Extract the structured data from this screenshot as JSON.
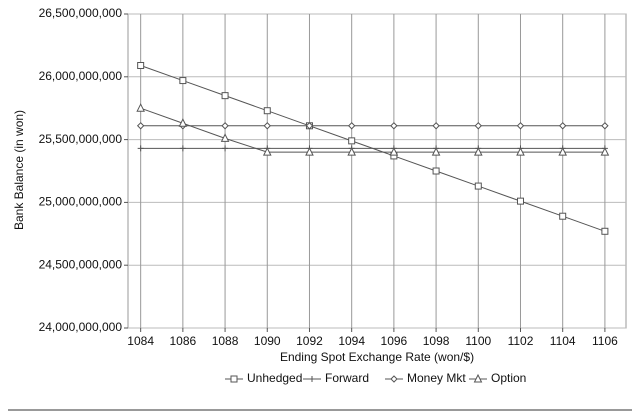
{
  "chart_data": {
    "type": "line",
    "x_label": "Ending Spot Exchange Rate (won/$)",
    "y_label": "Bank Balance (in won)",
    "x": [
      1084,
      1086,
      1088,
      1090,
      1092,
      1094,
      1096,
      1098,
      1100,
      1102,
      1104,
      1106
    ],
    "series": [
      {
        "name": "Unhedged",
        "color": "#555555",
        "marker": "square",
        "values": [
          26090000000,
          25970000000,
          25850000000,
          25730000000,
          25610000000,
          25490000000,
          25370000000,
          25250000000,
          25130000000,
          25010000000,
          24890000000,
          24770000000
        ]
      },
      {
        "name": "Forward",
        "color": "#555555",
        "marker": "plus",
        "values": [
          25430000000,
          25430000000,
          25430000000,
          25430000000,
          25430000000,
          25430000000,
          25430000000,
          25430000000,
          25430000000,
          25430000000,
          25430000000,
          25430000000
        ]
      },
      {
        "name": "Money Mkt",
        "color": "#555555",
        "marker": "diamond",
        "values": [
          25610000000,
          25610000000,
          25610000000,
          25610000000,
          25610000000,
          25610000000,
          25610000000,
          25610000000,
          25610000000,
          25610000000,
          25610000000,
          25610000000
        ]
      },
      {
        "name": "Option",
        "color": "#555555",
        "marker": "triangle",
        "values": [
          25750000000,
          25630000000,
          25510000000,
          25400000000,
          25400000000,
          25400000000,
          25400000000,
          25400000000,
          25400000000,
          25400000000,
          25400000000,
          25400000000
        ]
      }
    ],
    "xlim": [
      1083.4,
      1107
    ],
    "xticks": [
      1084,
      1086,
      1088,
      1090,
      1092,
      1094,
      1096,
      1098,
      1100,
      1102,
      1104,
      1106
    ],
    "ylim": [
      24000000000,
      26500000000
    ],
    "yticks": [
      {
        "value": 24000000000,
        "label": "24,000,000,000"
      },
      {
        "value": 24500000000,
        "label": "24,500,000,000"
      },
      {
        "value": 25000000000,
        "label": "25,000,000,000"
      },
      {
        "value": 25500000000,
        "label": "25,500,000,000"
      },
      {
        "value": 26000000000,
        "label": "26,000,000,000"
      },
      {
        "value": 26500000000,
        "label": "26,500,000,000"
      }
    ],
    "grid": true,
    "legend": "bottom"
  }
}
